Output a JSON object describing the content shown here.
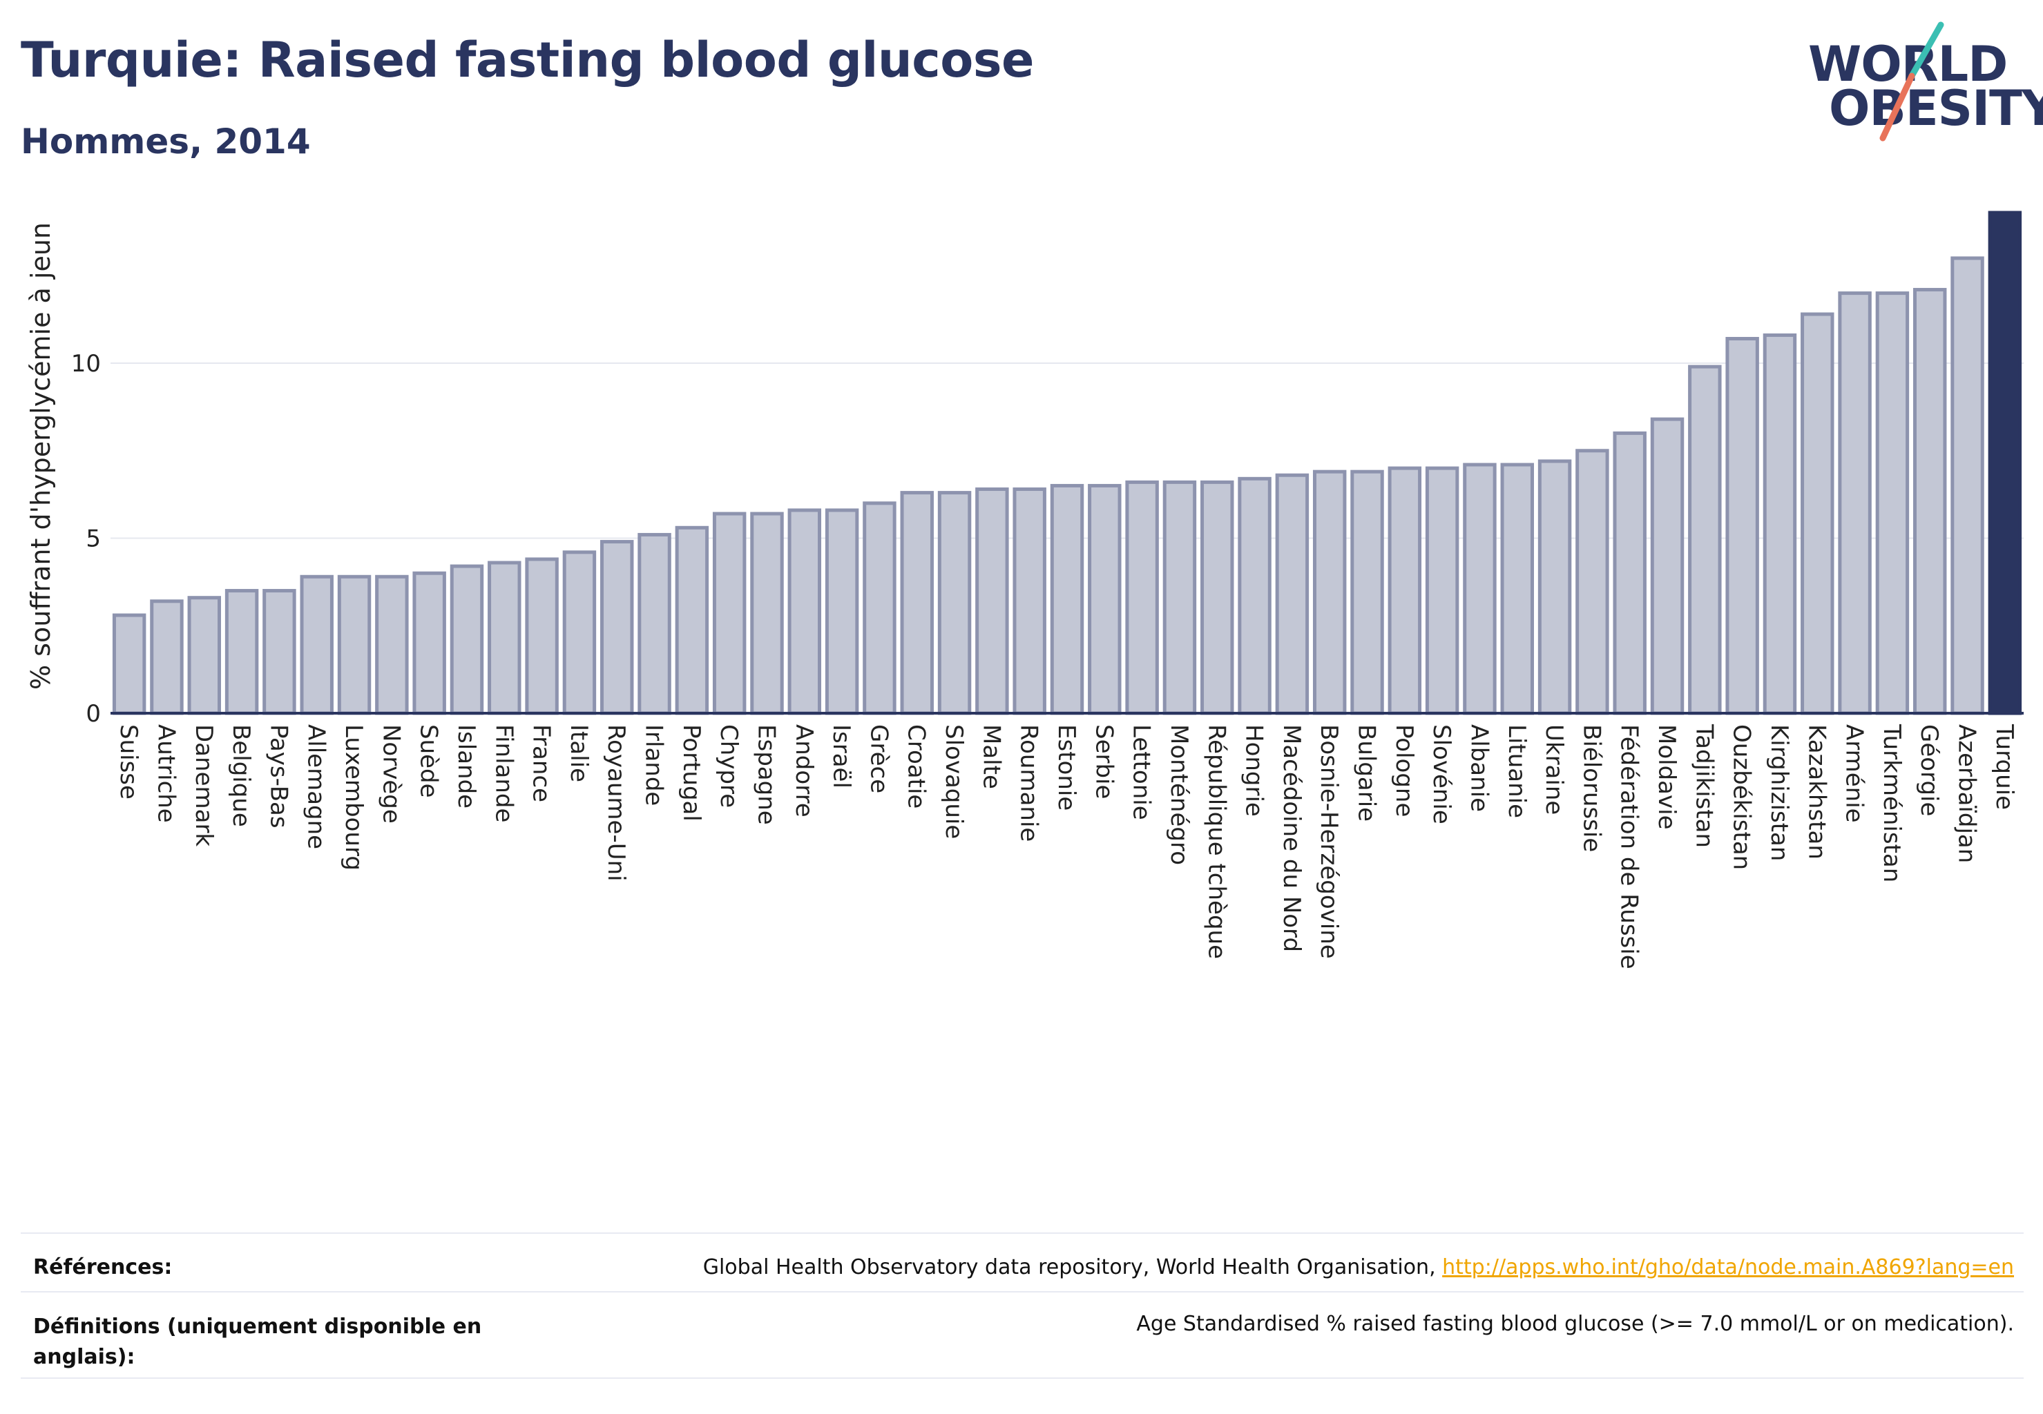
{
  "header": {
    "title": "Turquie: Raised fasting blood glucose",
    "subtitle": "Hommes, 2014",
    "logo_line1": "WORLD",
    "logo_line2": "OBESITY"
  },
  "colors": {
    "bar_fill": "#c3c7d5",
    "bar_stroke": "#8d93ae",
    "highlight": "#2a3560",
    "grid": "#e6e8ef",
    "logo_teal": "#3bbfb3",
    "logo_coral": "#e8735a"
  },
  "chart_data": {
    "type": "bar",
    "title": "Turquie: Raised fasting blood glucose",
    "subtitle": "Hommes, 2014",
    "ylabel": "% souffrant d'hyperglycémie à jeun",
    "xlabel": "",
    "ylim": [
      0,
      14.3
    ],
    "yticks": [
      0,
      5,
      10
    ],
    "grid": true,
    "highlight": "Turquie",
    "categories": [
      "Suisse",
      "Autriche",
      "Danemark",
      "Belgique",
      "Pays-Bas",
      "Allemagne",
      "Luxembourg",
      "Norvège",
      "Suède",
      "Islande",
      "Finlande",
      "France",
      "Italie",
      "Royaume-Uni",
      "Irlande",
      "Portugal",
      "Chypre",
      "Espagne",
      "Andorre",
      "Israël",
      "Grèce",
      "Croatie",
      "Slovaquie",
      "Malte",
      "Roumanie",
      "Estonie",
      "Serbie",
      "Lettonie",
      "Monténégro",
      "République tchèque",
      "Hongrie",
      "Macédoine du Nord",
      "Bosnie-Herzégovine",
      "Bulgarie",
      "Pologne",
      "Slovénie",
      "Albanie",
      "Lituanie",
      "Ukraine",
      "Biélorussie",
      "Fédération de Russie",
      "Moldavie",
      "Tadjikistan",
      "Ouzbékistan",
      "Kirghizistan",
      "Kazakhstan",
      "Arménie",
      "Turkménistan",
      "Géorgie",
      "Azerbaïdjan",
      "Turquie"
    ],
    "values": [
      2.8,
      3.2,
      3.3,
      3.5,
      3.5,
      3.9,
      3.9,
      3.9,
      4.0,
      4.2,
      4.3,
      4.4,
      4.6,
      4.9,
      5.1,
      5.3,
      5.7,
      5.7,
      5.8,
      5.8,
      6.0,
      6.3,
      6.3,
      6.4,
      6.4,
      6.5,
      6.5,
      6.6,
      6.6,
      6.6,
      6.7,
      6.8,
      6.9,
      6.9,
      7.0,
      7.0,
      7.1,
      7.1,
      7.2,
      7.5,
      8.0,
      8.4,
      9.9,
      10.7,
      10.8,
      11.4,
      12.0,
      12.0,
      12.1,
      13.0,
      14.3
    ]
  },
  "footer": {
    "references_label": "Références:",
    "references_text": "Global Health Observatory data repository, World Health Organisation, ",
    "references_link": "http://apps.who.int/gho/data/node.main.A869?lang=en",
    "definitions_label": "Définitions (uniquement disponible en anglais):",
    "definitions_text": "Age Standardised % raised fasting blood glucose (>= 7.0 mmol/L or on medication)."
  }
}
